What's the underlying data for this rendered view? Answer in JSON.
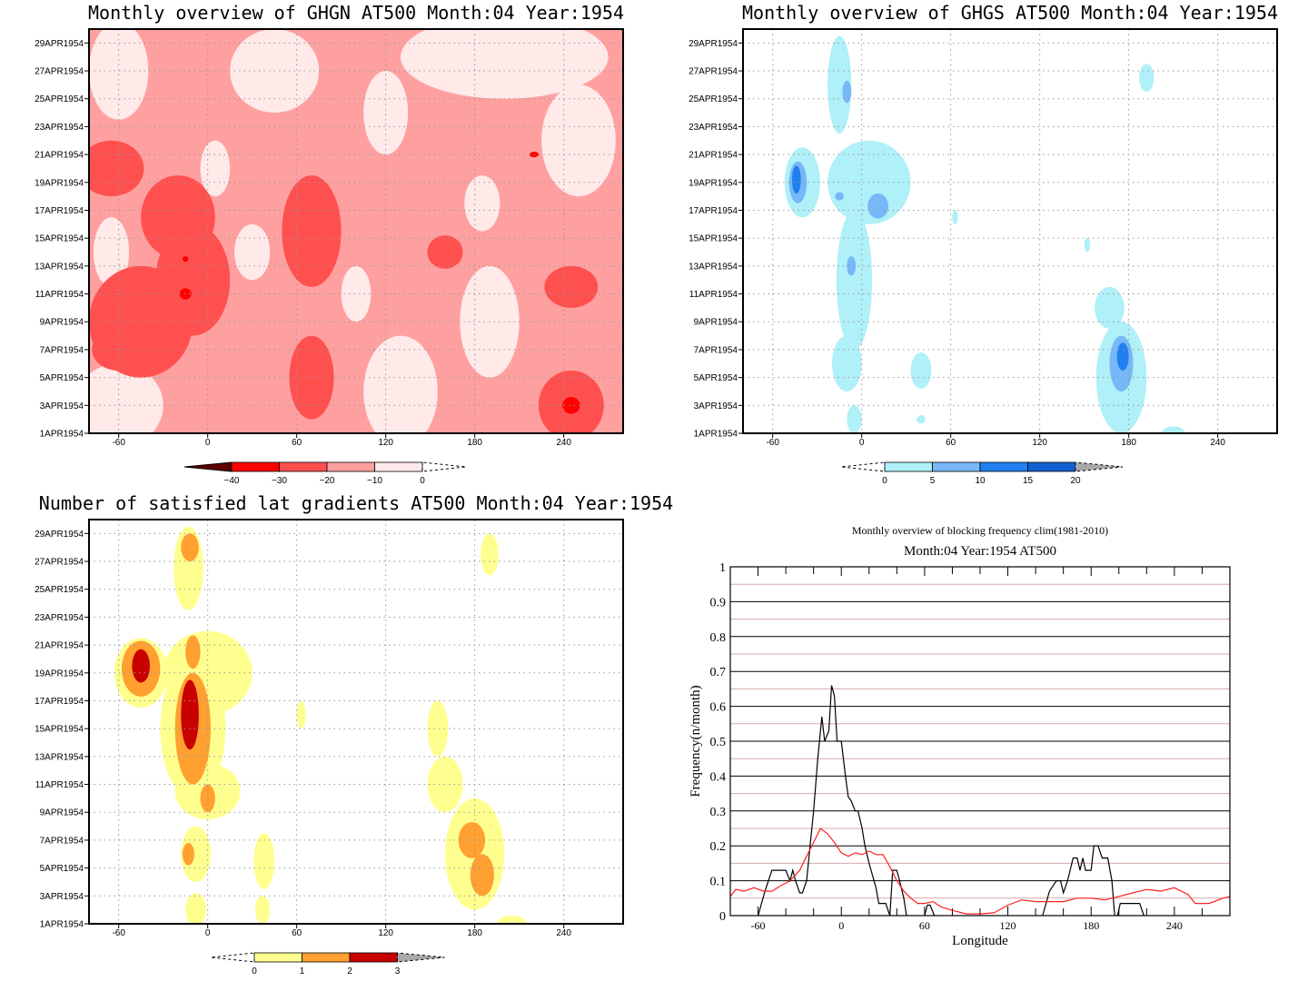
{
  "chart_data": [
    {
      "type": "heatmap",
      "id": "ghgn",
      "title": "Monthly overview of GHGN AT500 Month:04 Year:1954",
      "xlim": [
        -80,
        280
      ],
      "ylim": [
        1,
        30
      ],
      "xticks": [
        -60,
        0,
        60,
        120,
        180,
        240
      ],
      "yticks": [
        1,
        3,
        5,
        7,
        9,
        11,
        13,
        15,
        17,
        19,
        21,
        23,
        25,
        27,
        29
      ],
      "ytick_suffix": "APR1954",
      "grid": true,
      "base_level": 2,
      "colorbar": {
        "labels": [
          "-40",
          "-30",
          "-20",
          "-10",
          "0"
        ],
        "colors": [
          "#ff0000",
          "#ff5050",
          "#ffa0a0",
          "#ffe9e9"
        ],
        "low_triangle": "#600000",
        "high_triangle": "none"
      },
      "contours_note_level_index": "0=-40..-30,1=-30..-20,2=-20..-10,3=-10..0",
      "blobs": [
        [
          -60,
          27,
          20,
          3.5,
          3
        ],
        [
          45,
          27,
          30,
          3,
          3
        ],
        [
          200,
          28,
          70,
          3,
          3
        ],
        [
          250,
          22,
          25,
          4,
          3
        ],
        [
          120,
          24,
          15,
          3,
          3
        ],
        [
          185,
          17.5,
          12,
          2,
          3
        ],
        [
          190,
          9,
          20,
          4,
          3
        ],
        [
          130,
          4,
          25,
          4,
          3
        ],
        [
          -60,
          3,
          30,
          3,
          3
        ],
        [
          -65,
          14,
          12,
          2.5,
          3
        ],
        [
          30,
          14,
          12,
          2,
          3
        ],
        [
          5,
          20,
          10,
          2,
          3
        ],
        [
          100,
          11,
          10,
          2,
          3
        ],
        [
          -65,
          20,
          22,
          2,
          1
        ],
        [
          -20,
          16.5,
          25,
          3,
          1
        ],
        [
          -45,
          9,
          35,
          4,
          1
        ],
        [
          -10,
          12,
          25,
          4,
          1
        ],
        [
          70,
          15.5,
          20,
          4,
          1
        ],
        [
          70,
          5,
          15,
          3,
          1
        ],
        [
          160,
          14,
          12,
          1.2,
          1
        ],
        [
          245,
          11.5,
          18,
          1.5,
          1
        ],
        [
          245,
          3,
          22,
          2.5,
          1
        ],
        [
          -60,
          7,
          18,
          1.5,
          1
        ],
        [
          -15,
          11,
          4,
          0.4,
          0
        ],
        [
          245,
          3,
          6,
          0.6,
          0
        ],
        [
          -15,
          13.5,
          2,
          0.2,
          0
        ],
        [
          220,
          21,
          3,
          0.2,
          0
        ]
      ]
    },
    {
      "type": "heatmap",
      "id": "ghgs",
      "title": "Monthly overview of GHGS AT500 Month:04 Year:1954",
      "xlim": [
        -80,
        280
      ],
      "ylim": [
        1,
        30
      ],
      "xticks": [
        -60,
        0,
        60,
        120,
        180,
        240
      ],
      "yticks": [
        1,
        3,
        5,
        7,
        9,
        11,
        13,
        15,
        17,
        19,
        21,
        23,
        25,
        27,
        29
      ],
      "ytick_suffix": "APR1954",
      "grid": true,
      "base_level": -1,
      "colorbar": {
        "labels": [
          "0",
          "5",
          "10",
          "15",
          "20"
        ],
        "colors": [
          "#b0f0f8",
          "#78b8f8",
          "#2080f0",
          "#1060d0"
        ],
        "low_triangle": "none",
        "high_triangle": "#a8a8a8"
      },
      "blobs": [
        [
          -15,
          26,
          8,
          3.5,
          0
        ],
        [
          -40,
          19,
          12,
          2.5,
          0
        ],
        [
          5,
          19,
          28,
          3,
          0
        ],
        [
          -5,
          12,
          12,
          5,
          0
        ],
        [
          -10,
          6,
          10,
          2,
          0
        ],
        [
          40,
          5.5,
          7,
          1.3,
          0
        ],
        [
          -5,
          2,
          5,
          1,
          0
        ],
        [
          175,
          5,
          17,
          4,
          0
        ],
        [
          167,
          10,
          10,
          1.5,
          0
        ],
        [
          192,
          26.5,
          5,
          1,
          0
        ],
        [
          210,
          1,
          8,
          0.5,
          0
        ],
        [
          63,
          16.5,
          2,
          0.5,
          0
        ],
        [
          152,
          14.5,
          2,
          0.5,
          0
        ],
        [
          40,
          2,
          3,
          0.3,
          0
        ],
        [
          -10,
          25.5,
          3,
          0.8,
          1
        ],
        [
          -43,
          19,
          6,
          1.5,
          1
        ],
        [
          11,
          17.3,
          7,
          0.9,
          1
        ],
        [
          -7,
          13,
          3,
          0.7,
          1
        ],
        [
          175,
          6,
          8,
          2,
          1
        ],
        [
          -15,
          18,
          3,
          0.3,
          1
        ],
        [
          -44,
          19.2,
          3,
          1,
          2
        ],
        [
          176,
          6.5,
          4,
          1,
          2
        ]
      ]
    },
    {
      "type": "heatmap",
      "id": "gradients",
      "title": "Number of satisfied lat gradients AT500 Month:04 Year:1954",
      "xlim": [
        -80,
        280
      ],
      "ylim": [
        1,
        30
      ],
      "xticks": [
        -60,
        0,
        60,
        120,
        180,
        240
      ],
      "yticks": [
        1,
        3,
        5,
        7,
        9,
        11,
        13,
        15,
        17,
        19,
        21,
        23,
        25,
        27,
        29
      ],
      "ytick_suffix": "APR1954",
      "grid": true,
      "base_level": -1,
      "colorbar": {
        "labels": [
          "0",
          "1",
          "2",
          "3"
        ],
        "colors": [
          "#ffff90",
          "#ffa030",
          "#c80000"
        ],
        "low_triangle": "none",
        "high_triangle": "#a8a8a8"
      },
      "blobs": [
        [
          -13,
          26.5,
          10,
          3,
          0
        ],
        [
          -45,
          19,
          18,
          2.5,
          0
        ],
        [
          0,
          19,
          30,
          3,
          0
        ],
        [
          -10,
          15,
          22,
          5,
          0
        ],
        [
          0,
          10.5,
          22,
          2,
          0
        ],
        [
          -8,
          6,
          10,
          2,
          0
        ],
        [
          38,
          5.5,
          7,
          2,
          0
        ],
        [
          37,
          2,
          5,
          1,
          0
        ],
        [
          -8,
          2,
          7,
          1.2,
          0
        ],
        [
          63,
          16,
          3,
          1,
          0
        ],
        [
          190,
          27.5,
          6,
          1.5,
          0
        ],
        [
          155,
          15,
          7,
          2,
          0
        ],
        [
          160,
          11,
          12,
          2,
          0
        ],
        [
          180,
          6,
          20,
          4,
          0
        ],
        [
          205,
          1,
          10,
          0.6,
          0
        ],
        [
          -12,
          28,
          6,
          1,
          1
        ],
        [
          -45,
          19.3,
          13,
          2,
          1
        ],
        [
          -10,
          20.5,
          5,
          1.2,
          1
        ],
        [
          -10,
          15,
          12,
          4,
          1
        ],
        [
          0,
          10,
          5,
          1,
          1
        ],
        [
          -13,
          6,
          4,
          0.8,
          1
        ],
        [
          178,
          7,
          9,
          1.3,
          1
        ],
        [
          185,
          4.5,
          8,
          1.5,
          1
        ],
        [
          -45,
          19.5,
          6,
          1.2,
          2
        ],
        [
          -12,
          16,
          6,
          2.5,
          2
        ]
      ]
    },
    {
      "type": "line",
      "id": "frequency",
      "title": "Monthly overview of blocking frequency clim(1981-2010)",
      "subtitle": "Month:04 Year:1954  AT500",
      "xlabel": "Longitude",
      "ylabel": "Frequency(n/month)",
      "xlim": [
        -80,
        280
      ],
      "ylim": [
        0,
        1
      ],
      "xticks": [
        -60,
        0,
        60,
        120,
        180,
        240
      ],
      "yticks": [
        "0",
        "0.1",
        "0.2",
        "0.3",
        "0.4",
        "0.5",
        "0.6",
        "0.7",
        "0.8",
        "0.9",
        "1"
      ],
      "grid": true,
      "series": [
        {
          "name": "1954",
          "color": "#000000",
          "points": [
            [
              -60,
              0
            ],
            [
              -55,
              0.07
            ],
            [
              -50,
              0.13
            ],
            [
              -40,
              0.13
            ],
            [
              -37,
              0.1
            ],
            [
              -35,
              0.13
            ],
            [
              -33,
              0.1
            ],
            [
              -30,
              0.065
            ],
            [
              -28,
              0.065
            ],
            [
              -25,
              0.1
            ],
            [
              -20,
              0.3
            ],
            [
              -17,
              0.45
            ],
            [
              -14,
              0.57
            ],
            [
              -12,
              0.5
            ],
            [
              -9,
              0.53
            ],
            [
              -7,
              0.66
            ],
            [
              -5,
              0.63
            ],
            [
              -3,
              0.5
            ],
            [
              0,
              0.5
            ],
            [
              3,
              0.4
            ],
            [
              5,
              0.34
            ],
            [
              7,
              0.33
            ],
            [
              10,
              0.3
            ],
            [
              12,
              0.3
            ],
            [
              15,
              0.25
            ],
            [
              17,
              0.2
            ],
            [
              20,
              0.15
            ],
            [
              25,
              0.08
            ],
            [
              27,
              0.035
            ],
            [
              32,
              0.035
            ],
            [
              35,
              0
            ],
            [
              37,
              0.13
            ],
            [
              40,
              0.13
            ],
            [
              42,
              0.1
            ],
            [
              45,
              0.05
            ],
            [
              47,
              0
            ],
            null,
            [
              60,
              0
            ],
            [
              62,
              0.03
            ],
            [
              64,
              0.03
            ],
            [
              67,
              0
            ],
            null,
            [
              145,
              0
            ],
            [
              150,
              0.07
            ],
            [
              155,
              0.1
            ],
            [
              158,
              0.1
            ],
            [
              160,
              0.065
            ],
            [
              163,
              0.1
            ],
            [
              167,
              0.165
            ],
            [
              170,
              0.165
            ],
            [
              172,
              0.13
            ],
            [
              174,
              0.165
            ],
            [
              176,
              0.13
            ],
            [
              180,
              0.13
            ],
            [
              182,
              0.2
            ],
            [
              185,
              0.2
            ],
            [
              188,
              0.165
            ],
            [
              192,
              0.165
            ],
            [
              195,
              0.1
            ],
            [
              197,
              0
            ],
            null,
            [
              199,
              0
            ],
            [
              201,
              0.035
            ],
            [
              215,
              0.035
            ],
            [
              218,
              0
            ]
          ]
        },
        {
          "name": "clim(1981-2010)",
          "color": "#ff2020",
          "points": [
            [
              -80,
              0.055
            ],
            [
              -76,
              0.075
            ],
            [
              -70,
              0.07
            ],
            [
              -63,
              0.08
            ],
            [
              -56,
              0.07
            ],
            [
              -50,
              0.07
            ],
            [
              -44,
              0.085
            ],
            [
              -37,
              0.1
            ],
            [
              -30,
              0.13
            ],
            [
              -25,
              0.17
            ],
            [
              -20,
              0.21
            ],
            [
              -15,
              0.25
            ],
            [
              -10,
              0.235
            ],
            [
              -5,
              0.21
            ],
            [
              0,
              0.18
            ],
            [
              5,
              0.17
            ],
            [
              10,
              0.18
            ],
            [
              15,
              0.175
            ],
            [
              20,
              0.185
            ],
            [
              25,
              0.175
            ],
            [
              30,
              0.175
            ],
            [
              35,
              0.14
            ],
            [
              40,
              0.1
            ],
            [
              45,
              0.07
            ],
            [
              50,
              0.05
            ],
            [
              55,
              0.035
            ],
            [
              60,
              0.035
            ],
            [
              66,
              0.04
            ],
            [
              72,
              0.025
            ],
            [
              80,
              0.015
            ],
            [
              90,
              0.005
            ],
            [
              100,
              0.005
            ],
            [
              110,
              0.008
            ],
            [
              120,
              0.03
            ],
            [
              130,
              0.045
            ],
            [
              140,
              0.04
            ],
            [
              150,
              0.04
            ],
            [
              160,
              0.04
            ],
            [
              170,
              0.05
            ],
            [
              180,
              0.05
            ],
            [
              190,
              0.045
            ],
            [
              200,
              0.055
            ],
            [
              210,
              0.065
            ],
            [
              220,
              0.075
            ],
            [
              230,
              0.07
            ],
            [
              240,
              0.08
            ],
            [
              250,
              0.06
            ],
            [
              255,
              0.035
            ],
            [
              265,
              0.035
            ],
            [
              275,
              0.05
            ],
            [
              280,
              0.055
            ]
          ]
        }
      ]
    }
  ]
}
